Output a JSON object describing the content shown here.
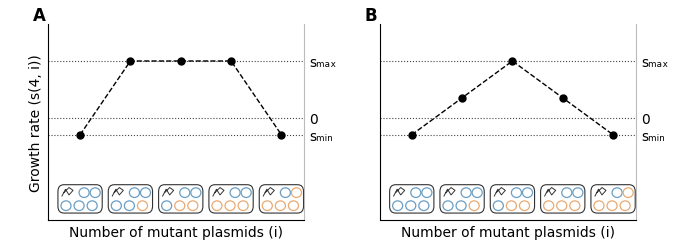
{
  "chart_data": [
    {
      "type": "line",
      "title": "A",
      "x_label": "Number of mutant plasmids (i)",
      "y_label": "Growth rate (s(4, i))",
      "x": [
        0,
        1,
        2,
        3,
        4
      ],
      "values": [
        -0.3,
        1,
        1,
        1,
        -0.3
      ],
      "xlim": [
        -0.63,
        4.45
      ],
      "ylim": [
        -1.8,
        1.65
      ],
      "yticks": [
        {
          "value": -0.3,
          "label": "sₘᵢₙ"
        },
        0,
        {
          "value": 1,
          "label": "sₘₐₓ"
        }
      ],
      "grid": true,
      "tick_labels": "y",
      "color": "#000000",
      "marker": "o",
      "line_style": "dashed"
    },
    {
      "type": "line",
      "title": "B",
      "x_label": "Number of mutant plasmids (i)",
      "x": [
        0,
        1,
        2,
        3,
        4
      ],
      "values": [
        -0.3,
        0.35,
        1,
        0.35,
        -0.3
      ],
      "xlim": [
        -0.63,
        4.45
      ],
      "ylim": [
        -1.8,
        1.65
      ],
      "yticks": [
        {
          "value": -0.3,
          "label": "sₘᵢₙ"
        },
        0,
        {
          "value": 1,
          "label": "sₘₐₓ"
        }
      ],
      "grid": true,
      "tick_labels": "y",
      "color": "#000000",
      "marker": "o",
      "line_style": "dashed"
    }
  ]
}
